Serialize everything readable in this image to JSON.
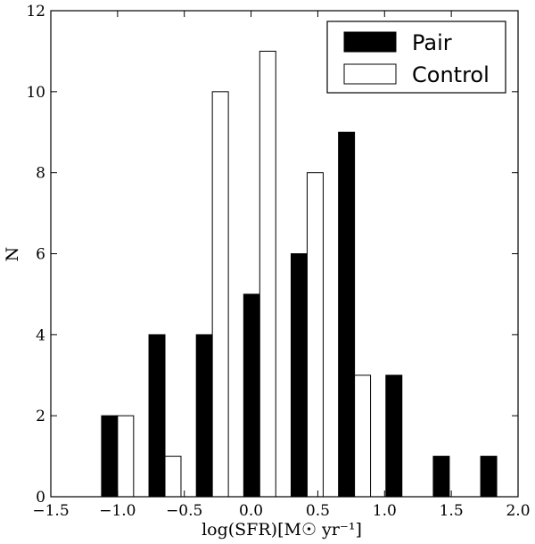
{
  "chart_data": {
    "type": "bar",
    "xlabel": "log(SFR)[M☉ yr⁻¹]",
    "ylabel": "N",
    "xlim": [
      -1.5,
      2.0
    ],
    "ylim": [
      0,
      12
    ],
    "xticks": [
      -1.5,
      -1.0,
      -0.5,
      0.0,
      0.5,
      1.0,
      1.5,
      2.0
    ],
    "yticks": [
      0,
      2,
      4,
      6,
      8,
      10,
      12
    ],
    "xtick_labels": [
      "−1.5",
      "−1.0",
      "−0.5",
      "0.0",
      "0.5",
      "1.0",
      "1.5",
      "2.0"
    ],
    "ytick_labels": [
      "0",
      "2",
      "4",
      "6",
      "8",
      "10",
      "12"
    ],
    "bin_starts": [
      -1.12,
      -0.765,
      -0.41,
      -0.055,
      0.3,
      0.655,
      1.01,
      1.365,
      1.72
    ],
    "bar_width": 0.12,
    "legend_position": "top-right",
    "series": [
      {
        "name": "Pair",
        "color": "#000000",
        "offset": 0.0,
        "values": [
          2,
          4,
          4,
          5,
          6,
          9,
          3,
          1,
          1
        ]
      },
      {
        "name": "Control",
        "color": "#ffffff",
        "offset": 0.12,
        "values": [
          2,
          1,
          10,
          11,
          8,
          3,
          0,
          0,
          0
        ]
      }
    ]
  }
}
